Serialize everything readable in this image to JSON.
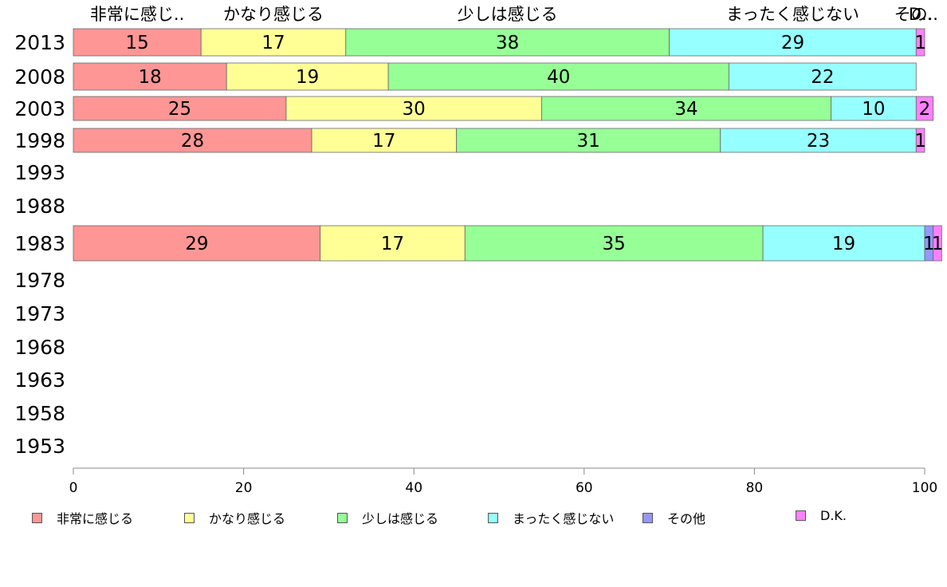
{
  "chart_data": {
    "type": "bar",
    "orientation": "horizontal",
    "stacked": true,
    "categories": [
      "2013",
      "2008",
      "2003",
      "1998",
      "1993",
      "1988",
      "1983",
      "1978",
      "1973",
      "1968",
      "1963",
      "1958",
      "1953"
    ],
    "series": [
      {
        "name": "非常に感じる",
        "short": "非常に感じ..",
        "color": "#ff9696",
        "values": [
          15,
          18,
          25,
          28,
          null,
          null,
          29,
          null,
          null,
          null,
          null,
          null,
          null
        ]
      },
      {
        "name": "かなり感じる",
        "short": "かなり感じる",
        "color": "#ffff96",
        "values": [
          17,
          19,
          30,
          17,
          null,
          null,
          17,
          null,
          null,
          null,
          null,
          null,
          null
        ]
      },
      {
        "name": "少しは感じる",
        "short": "少しは感じる",
        "color": "#96ff96",
        "values": [
          38,
          40,
          34,
          31,
          null,
          null,
          35,
          null,
          null,
          null,
          null,
          null,
          null
        ]
      },
      {
        "name": "まったく感じない",
        "short": "まったく感じない",
        "color": "#96ffff",
        "values": [
          29,
          22,
          10,
          23,
          null,
          null,
          19,
          null,
          null,
          null,
          null,
          null,
          null
        ]
      },
      {
        "name": "その他",
        "short": "その..",
        "color": "#9696ff",
        "values": [
          0,
          0,
          0,
          0,
          null,
          null,
          1,
          null,
          null,
          null,
          null,
          null,
          null
        ]
      },
      {
        "name": "D.K.",
        "short": "D..",
        "color": "#ff80ff",
        "values": [
          1,
          0,
          2,
          1,
          null,
          null,
          1,
          null,
          null,
          null,
          null,
          null,
          null
        ]
      }
    ],
    "xlim": [
      0,
      100
    ],
    "xticks": [
      0,
      20,
      40,
      60,
      80,
      100
    ],
    "legend_position": "bottom",
    "grid": false
  }
}
